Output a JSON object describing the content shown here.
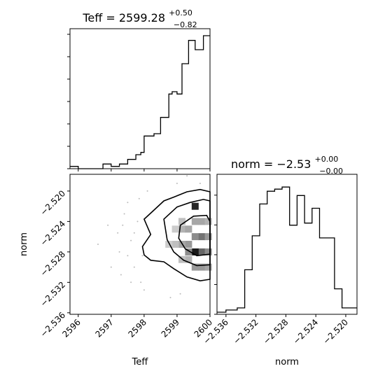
{
  "chart_data": [
    {
      "type": "histogram",
      "title_base": "Teff = 2599.28",
      "title_sup": "+0.50",
      "title_sub": "−0.82",
      "xlim": [
        2595.75,
        2600.0
      ],
      "bins": [
        {
          "x0": 2595.75,
          "x1": 2596.0,
          "count": 1
        },
        {
          "x0": 2596.0,
          "x1": 2596.75,
          "count": 0
        },
        {
          "x0": 2596.75,
          "x1": 2597.0,
          "count": 2
        },
        {
          "x0": 2597.0,
          "x1": 2597.25,
          "count": 1
        },
        {
          "x0": 2597.25,
          "x1": 2597.5,
          "count": 2
        },
        {
          "x0": 2597.5,
          "x1": 2597.75,
          "count": 4
        },
        {
          "x0": 2597.75,
          "x1": 2597.9,
          "count": 6
        },
        {
          "x0": 2597.9,
          "x1": 2598.0,
          "count": 7
        },
        {
          "x0": 2598.0,
          "x1": 2598.3,
          "count": 14
        },
        {
          "x0": 2598.3,
          "x1": 2598.5,
          "count": 15
        },
        {
          "x0": 2598.5,
          "x1": 2598.75,
          "count": 22
        },
        {
          "x0": 2598.75,
          "x1": 2598.85,
          "count": 32
        },
        {
          "x0": 2598.85,
          "x1": 2599.0,
          "count": 33
        },
        {
          "x0": 2599.0,
          "x1": 2599.15,
          "count": 32
        },
        {
          "x0": 2599.15,
          "x1": 2599.35,
          "count": 45
        },
        {
          "x0": 2599.35,
          "x1": 2599.55,
          "count": 55
        },
        {
          "x0": 2599.55,
          "x1": 2599.8,
          "count": 51
        },
        {
          "x0": 2599.8,
          "x1": 2600.0,
          "count": 57
        }
      ]
    },
    {
      "type": "scatter",
      "xlabel": "Teff",
      "ylabel": "norm",
      "xlim": [
        2595.75,
        2600.0
      ],
      "ylim": [
        -2.5362,
        -2.5178
      ],
      "xticks": [
        "2596",
        "2597",
        "2598",
        "2599",
        "2600"
      ],
      "yticks": [
        "−2.520",
        "−2.524",
        "−2.528",
        "−2.532",
        "−2.536"
      ],
      "contour_levels": [
        [
          [
            2598.0,
            -2.5237
          ],
          [
            2598.3,
            -2.5225
          ],
          [
            2598.6,
            -2.5213
          ],
          [
            2598.9,
            -2.5208
          ],
          [
            2599.3,
            -2.5201
          ],
          [
            2599.7,
            -2.5198
          ],
          [
            2600.0,
            -2.5201
          ],
          [
            2600.0,
            -2.5316
          ],
          [
            2599.7,
            -2.5318
          ],
          [
            2599.3,
            -2.5313
          ],
          [
            2598.9,
            -2.5302
          ],
          [
            2598.6,
            -2.5293
          ],
          [
            2598.2,
            -2.5291
          ],
          [
            2598.0,
            -2.5284
          ],
          [
            2597.95,
            -2.5273
          ],
          [
            2598.2,
            -2.5257
          ]
        ],
        [
          [
            2598.6,
            -2.5237
          ],
          [
            2599.0,
            -2.5221
          ],
          [
            2599.4,
            -2.5215
          ],
          [
            2599.8,
            -2.5211
          ],
          [
            2600.0,
            -2.5213
          ],
          [
            2600.0,
            -2.5297
          ],
          [
            2599.6,
            -2.5298
          ],
          [
            2599.2,
            -2.5291
          ],
          [
            2598.9,
            -2.528
          ],
          [
            2598.7,
            -2.5264
          ]
        ],
        [
          [
            2599.1,
            -2.5245
          ],
          [
            2599.5,
            -2.5233
          ],
          [
            2599.9,
            -2.5232
          ],
          [
            2600.0,
            -2.524
          ],
          [
            2600.0,
            -2.5283
          ],
          [
            2599.6,
            -2.5285
          ],
          [
            2599.25,
            -2.5276
          ],
          [
            2599.05,
            -2.5262
          ]
        ]
      ],
      "points": [
        [
          2596.6,
          -2.527
        ],
        [
          2596.9,
          -2.5245
        ],
        [
          2597.0,
          -2.53
        ],
        [
          2597.2,
          -2.5255
        ],
        [
          2597.3,
          -2.531
        ],
        [
          2597.4,
          -2.523
        ],
        [
          2597.5,
          -2.5285
        ],
        [
          2597.6,
          -2.5265
        ],
        [
          2597.7,
          -2.53
        ],
        [
          2597.8,
          -2.524
        ],
        [
          2597.9,
          -2.532
        ],
        [
          2597.5,
          -2.5215
        ],
        [
          2597.7,
          -2.5255
        ],
        [
          2597.25,
          -2.528
        ],
        [
          2597.85,
          -2.521
        ],
        [
          2598.0,
          -2.533
        ],
        [
          2598.1,
          -2.52
        ],
        [
          2597.95,
          -2.5285
        ],
        [
          2597.6,
          -2.532
        ],
        [
          2597.35,
          -2.5245
        ],
        [
          2599.0,
          -2.519
        ],
        [
          2599.3,
          -2.518
        ],
        [
          2598.8,
          -2.534
        ],
        [
          2599.1,
          -2.5335
        ],
        [
          2599.7,
          -2.519
        ]
      ],
      "pixels": [
        {
          "x": 2599.75,
          "y": -2.526,
          "d": 0.55
        },
        {
          "x": 2599.95,
          "y": -2.526,
          "d": 0.4
        },
        {
          "x": 2599.55,
          "y": -2.526,
          "d": 0.45
        },
        {
          "x": 2599.35,
          "y": -2.527,
          "d": 0.4
        },
        {
          "x": 2599.75,
          "y": -2.528,
          "d": 0.6
        },
        {
          "x": 2599.55,
          "y": -2.528,
          "d": 0.9
        },
        {
          "x": 2599.35,
          "y": -2.528,
          "d": 0.45
        },
        {
          "x": 2599.15,
          "y": -2.527,
          "d": 0.35
        },
        {
          "x": 2599.95,
          "y": -2.528,
          "d": 0.45
        },
        {
          "x": 2599.55,
          "y": -2.53,
          "d": 0.4
        },
        {
          "x": 2599.75,
          "y": -2.53,
          "d": 0.4
        },
        {
          "x": 2599.95,
          "y": -2.53,
          "d": 0.35
        },
        {
          "x": 2599.35,
          "y": -2.529,
          "d": 0.3
        },
        {
          "x": 2599.15,
          "y": -2.525,
          "d": 0.3
        },
        {
          "x": 2599.35,
          "y": -2.525,
          "d": 0.35
        },
        {
          "x": 2599.55,
          "y": -2.524,
          "d": 0.35
        },
        {
          "x": 2599.75,
          "y": -2.524,
          "d": 0.35
        },
        {
          "x": 2599.95,
          "y": -2.524,
          "d": 0.3
        },
        {
          "x": 2599.55,
          "y": -2.522,
          "d": 0.85
        },
        {
          "x": 2599.15,
          "y": -2.524,
          "d": 0.25
        },
        {
          "x": 2598.95,
          "y": -2.527,
          "d": 0.25
        },
        {
          "x": 2598.75,
          "y": -2.527,
          "d": 0.2
        },
        {
          "x": 2598.95,
          "y": -2.525,
          "d": 0.2
        },
        {
          "x": 2599.15,
          "y": -2.529,
          "d": 0.25
        }
      ]
    },
    {
      "type": "histogram",
      "title_base": "norm = −2.53",
      "title_sup": "+0.00",
      "title_sub": "−0.00",
      "xlabel": "norm",
      "xlim": [
        -2.5372,
        -2.5185
      ],
      "xticks": [
        "−2.536",
        "−2.532",
        "−2.528",
        "−2.524",
        "−2.520"
      ],
      "bins": [
        {
          "x0": -2.5372,
          "x1": -2.536,
          "count": 1
        },
        {
          "x0": -2.536,
          "x1": -2.5345,
          "count": 2
        },
        {
          "x0": -2.5345,
          "x1": -2.5335,
          "count": 3
        },
        {
          "x0": -2.5335,
          "x1": -2.5325,
          "count": 21
        },
        {
          "x0": -2.5325,
          "x1": -2.5315,
          "count": 37
        },
        {
          "x0": -2.5315,
          "x1": -2.5305,
          "count": 52
        },
        {
          "x0": -2.5305,
          "x1": -2.5295,
          "count": 58
        },
        {
          "x0": -2.5295,
          "x1": -2.5285,
          "count": 59
        },
        {
          "x0": -2.5285,
          "x1": -2.5275,
          "count": 60
        },
        {
          "x0": -2.5275,
          "x1": -2.5265,
          "count": 42
        },
        {
          "x0": -2.5265,
          "x1": -2.5255,
          "count": 56
        },
        {
          "x0": -2.5255,
          "x1": -2.5245,
          "count": 43
        },
        {
          "x0": -2.5245,
          "x1": -2.5235,
          "count": 50
        },
        {
          "x0": -2.5235,
          "x1": -2.5225,
          "count": 36
        },
        {
          "x0": -2.5225,
          "x1": -2.5215,
          "count": 36
        },
        {
          "x0": -2.5215,
          "x1": -2.5205,
          "count": 12
        },
        {
          "x0": -2.5205,
          "x1": -2.5195,
          "count": 3
        },
        {
          "x0": -2.5195,
          "x1": -2.5185,
          "count": 3
        }
      ]
    }
  ]
}
